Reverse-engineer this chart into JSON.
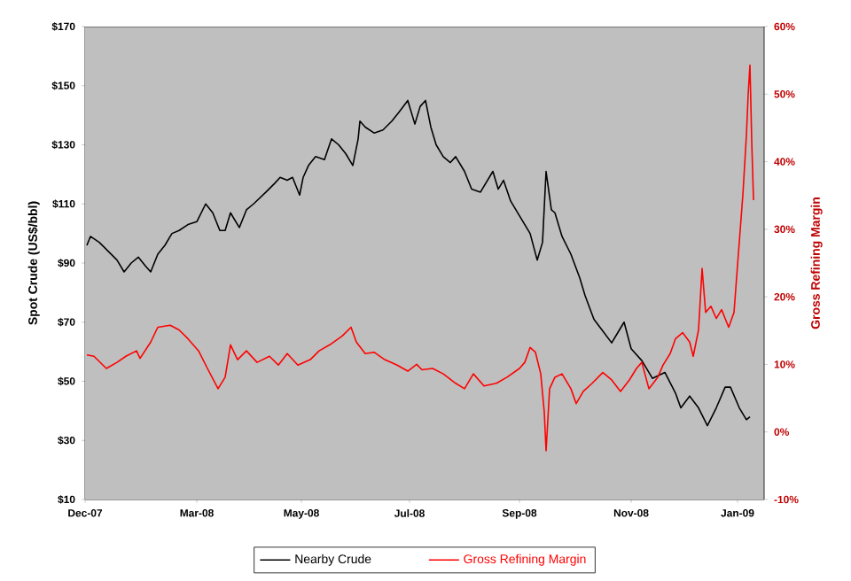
{
  "chart_data": {
    "type": "line",
    "ylabel": "Spot Crude (US$/bbl)",
    "y2label": "Gross Refining Margin",
    "xlim": [
      "2007-12-31",
      "2009-01-17"
    ],
    "xticks": [
      {
        "value": "2007-12-31",
        "label": "Dec-07"
      },
      {
        "value": "2008-03-03",
        "label": "Mar-08"
      },
      {
        "value": "2008-05-01",
        "label": "May-08"
      },
      {
        "value": "2008-07-01",
        "label": "Jul-08"
      },
      {
        "value": "2008-09-01",
        "label": "Sep-08"
      },
      {
        "value": "2008-11-03",
        "label": "Nov-08"
      },
      {
        "value": "2009-01-02",
        "label": "Jan-09"
      }
    ],
    "ylim": [
      10,
      170
    ],
    "yticks": [
      {
        "value": 10,
        "label": "$10"
      },
      {
        "value": 30,
        "label": "$30"
      },
      {
        "value": 50,
        "label": "$50"
      },
      {
        "value": 70,
        "label": "$70"
      },
      {
        "value": 90,
        "label": "$90"
      },
      {
        "value": 110,
        "label": "$110"
      },
      {
        "value": 130,
        "label": "$130"
      },
      {
        "value": 150,
        "label": "$150"
      },
      {
        "value": 170,
        "label": "$170"
      }
    ],
    "y2lim": [
      -10,
      60
    ],
    "y2ticks": [
      {
        "value": -10,
        "label": "-10%"
      },
      {
        "value": 0,
        "label": "0%"
      },
      {
        "value": 10,
        "label": "10%"
      },
      {
        "value": 20,
        "label": "20%"
      },
      {
        "value": 30,
        "label": "30%"
      },
      {
        "value": 40,
        "label": "40%"
      },
      {
        "value": 50,
        "label": "50%"
      },
      {
        "value": 60,
        "label": "60%"
      }
    ],
    "legend": "bottom",
    "line_style": "solid",
    "series": [
      {
        "name": "Nearby Crude",
        "color": "#000000",
        "x": [
          "2008-01-01",
          "2008-01-03",
          "2008-01-08",
          "2008-01-13",
          "2008-01-18",
          "2008-01-22",
          "2008-01-26",
          "2008-01-30",
          "2008-02-03",
          "2008-02-06",
          "2008-02-10",
          "2008-02-14",
          "2008-02-18",
          "2008-02-22",
          "2008-02-27",
          "2008-03-03",
          "2008-03-08",
          "2008-03-12",
          "2008-03-16",
          "2008-03-19",
          "2008-03-22",
          "2008-03-27",
          "2008-03-31",
          "2008-04-04",
          "2008-04-11",
          "2008-04-16",
          "2008-04-19",
          "2008-04-23",
          "2008-04-26",
          "2008-04-30",
          "2008-05-02",
          "2008-05-05",
          "2008-05-09",
          "2008-05-14",
          "2008-05-18",
          "2008-05-22",
          "2008-05-26",
          "2008-05-30",
          "2008-06-02",
          "2008-06-03",
          "2008-06-06",
          "2008-06-11",
          "2008-06-16",
          "2008-06-21",
          "2008-06-25",
          "2008-06-30",
          "2008-07-04",
          "2008-07-07",
          "2008-07-10",
          "2008-07-13",
          "2008-07-16",
          "2008-07-20",
          "2008-07-24",
          "2008-07-27",
          "2008-08-01",
          "2008-08-05",
          "2008-08-10",
          "2008-08-17",
          "2008-08-20",
          "2008-08-23",
          "2008-08-27",
          "2008-09-01",
          "2008-09-07",
          "2008-09-11",
          "2008-09-14",
          "2008-09-16",
          "2008-09-19",
          "2008-09-21",
          "2008-09-25",
          "2008-09-30",
          "2008-10-05",
          "2008-10-08",
          "2008-10-13",
          "2008-10-18",
          "2008-10-23",
          "2008-10-27",
          "2008-10-30",
          "2008-11-03",
          "2008-11-09",
          "2008-11-15",
          "2008-11-22",
          "2008-11-28",
          "2008-12-01",
          "2008-12-06",
          "2008-12-11",
          "2008-12-16",
          "2008-12-21",
          "2008-12-26",
          "2008-12-29",
          "2009-01-03",
          "2009-01-07",
          "2009-01-09"
        ],
        "values": [
          96,
          99,
          97,
          94,
          91,
          87,
          90,
          92,
          89,
          87,
          93,
          96,
          100,
          101,
          103,
          104,
          110,
          107,
          101,
          101,
          107,
          102,
          108,
          110,
          114,
          117,
          119,
          118,
          119,
          113,
          119,
          123,
          126,
          125,
          132,
          130,
          127,
          123,
          132,
          138,
          136,
          134,
          135,
          138,
          141,
          145,
          137,
          143,
          145,
          136,
          130,
          126,
          124,
          126,
          121,
          115,
          114,
          121,
          115,
          118,
          111,
          106,
          100,
          91,
          97,
          121,
          108,
          107,
          99,
          93,
          85,
          79,
          71,
          67,
          63,
          67,
          70,
          61,
          57,
          51,
          53,
          46,
          41,
          45,
          41,
          35,
          41,
          48,
          48,
          41,
          37,
          38
        ]
      },
      {
        "name": "Gross Refining Margin",
        "color": "#ff0000",
        "axis": "y2",
        "x": [
          "2008-01-01",
          "2008-01-05",
          "2008-01-12",
          "2008-01-18",
          "2008-01-23",
          "2008-01-29",
          "2008-01-31",
          "2008-02-06",
          "2008-02-10",
          "2008-02-17",
          "2008-02-22",
          "2008-02-27",
          "2008-03-04",
          "2008-03-09",
          "2008-03-15",
          "2008-03-19",
          "2008-03-22",
          "2008-03-26",
          "2008-03-31",
          "2008-04-06",
          "2008-04-13",
          "2008-04-18",
          "2008-04-23",
          "2008-04-29",
          "2008-05-06",
          "2008-05-11",
          "2008-05-17",
          "2008-05-24",
          "2008-05-29",
          "2008-06-01",
          "2008-06-06",
          "2008-06-11",
          "2008-06-17",
          "2008-06-24",
          "2008-06-30",
          "2008-07-05",
          "2008-07-08",
          "2008-07-14",
          "2008-07-20",
          "2008-07-27",
          "2008-08-01",
          "2008-08-06",
          "2008-08-12",
          "2008-08-19",
          "2008-08-25",
          "2008-09-01",
          "2008-09-04",
          "2008-09-07",
          "2008-09-10",
          "2008-09-13",
          "2008-09-15",
          "2008-09-16",
          "2008-09-18",
          "2008-09-21",
          "2008-09-25",
          "2008-09-30",
          "2008-10-03",
          "2008-10-07",
          "2008-10-12",
          "2008-10-18",
          "2008-10-23",
          "2008-10-28",
          "2008-11-02",
          "2008-11-06",
          "2008-11-09",
          "2008-11-13",
          "2008-11-18",
          "2008-11-21",
          "2008-11-25",
          "2008-11-28",
          "2008-12-02",
          "2008-12-06",
          "2008-12-08",
          "2008-12-11",
          "2008-12-13",
          "2008-12-15",
          "2008-12-18",
          "2008-12-21",
          "2008-12-24",
          "2008-12-28",
          "2008-12-31",
          "2009-01-02",
          "2009-01-05",
          "2009-01-07",
          "2009-01-08",
          "2009-01-09",
          "2009-01-10",
          "2009-01-11"
        ],
        "values": [
          11.4,
          11.2,
          9.4,
          10.3,
          11.2,
          12,
          10.9,
          13.3,
          15.5,
          15.8,
          15.1,
          13.8,
          12,
          9.4,
          6.4,
          8.1,
          12.9,
          10.7,
          12,
          10.3,
          11.2,
          9.9,
          11.6,
          9.9,
          10.7,
          12,
          12.9,
          14.2,
          15.5,
          13.3,
          11.6,
          11.8,
          10.7,
          9.9,
          9,
          10,
          9.2,
          9.4,
          8.6,
          7.2,
          6.4,
          8.6,
          6.8,
          7.2,
          8.1,
          9.4,
          10.3,
          12.5,
          11.8,
          8.6,
          2.9,
          -2.8,
          6.4,
          8.1,
          8.6,
          6.4,
          4.2,
          6,
          7.2,
          8.8,
          7.7,
          6,
          7.7,
          9.4,
          10.3,
          6.4,
          8.1,
          9.9,
          11.6,
          13.8,
          14.7,
          13.3,
          11.2,
          15.1,
          24.2,
          17.7,
          18.6,
          16.8,
          18.1,
          15.5,
          17.7,
          24.7,
          35.1,
          43.9,
          50,
          54.3,
          43,
          34.3
        ]
      }
    ]
  }
}
